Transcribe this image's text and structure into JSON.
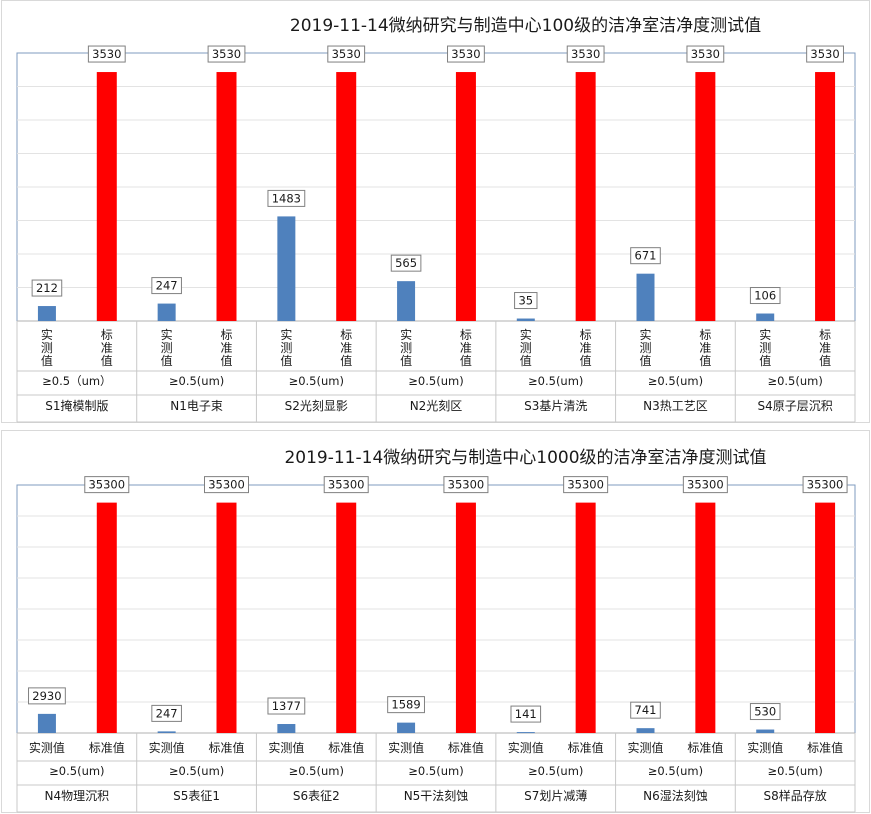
{
  "chart_data": [
    {
      "type": "bar",
      "title": "2019-11-14微纳研究与制造中心100级的洁净室洁净度测试值",
      "ylim": [
        0,
        3800
      ],
      "grid": true,
      "categories": [
        {
          "sub": [
            "实测值",
            "标准值"
          ],
          "size": "≥0.5（um）",
          "name": "S1掩模制版"
        },
        {
          "sub": [
            "实测值",
            "标准值"
          ],
          "size": "≥0.5(um)",
          "name": "N1电子束"
        },
        {
          "sub": [
            "实测值",
            "标准值"
          ],
          "size": "≥0.5(um)",
          "name": "S2光刻显影"
        },
        {
          "sub": [
            "实测值",
            "标准值"
          ],
          "size": "≥0.5(um)",
          "name": "N2光刻区"
        },
        {
          "sub": [
            "实测值",
            "标准值"
          ],
          "size": "≥0.5(um)",
          "name": "S3基片清洗"
        },
        {
          "sub": [
            "实测值",
            "标准值"
          ],
          "size": "≥0.5(um)",
          "name": "N3热工艺区"
        },
        {
          "sub": [
            "实测值",
            "标准值"
          ],
          "size": "≥0.5(um)",
          "name": "S4原子层沉积"
        }
      ],
      "series": [
        {
          "values": [
            212,
            247,
            1483,
            565,
            35,
            671,
            106
          ],
          "color": "#4f81bd"
        },
        {
          "values": [
            3530,
            3530,
            3530,
            3530,
            3530,
            3530,
            3530
          ],
          "color": "#ff0000"
        }
      ]
    },
    {
      "type": "bar",
      "title": "2019-11-14微纳研究与制造中心1000级的洁净室洁净度测试值",
      "ylim": [
        0,
        38000
      ],
      "grid": true,
      "categories": [
        {
          "sub": [
            "实测值",
            "标准值"
          ],
          "size": "≥0.5(um)",
          "name": "N4物理沉积"
        },
        {
          "sub": [
            "实测值",
            "标准值"
          ],
          "size": "≥0.5(um)",
          "name": "S5表征1"
        },
        {
          "sub": [
            "实测值",
            "标准值"
          ],
          "size": "≥0.5(um)",
          "name": "S6表征2"
        },
        {
          "sub": [
            "实测值",
            "标准值"
          ],
          "size": "≥0.5(um)",
          "name": "N5干法刻蚀"
        },
        {
          "sub": [
            "实测值",
            "标准值"
          ],
          "size": "≥0.5(um)",
          "name": "S7划片减薄"
        },
        {
          "sub": [
            "实测值",
            "标准值"
          ],
          "size": "≥0.5(um)",
          "name": "N6湿法刻蚀"
        },
        {
          "sub": [
            "实测值",
            "标准值"
          ],
          "size": "≥0.5(um)",
          "name": "S8样品存放"
        }
      ],
      "series": [
        {
          "values": [
            2930,
            247,
            1377,
            1589,
            141,
            741,
            530
          ],
          "color": "#4f81bd"
        },
        {
          "values": [
            35300,
            35300,
            35300,
            35300,
            35300,
            35300,
            35300
          ],
          "color": "#ff0000"
        }
      ]
    }
  ]
}
